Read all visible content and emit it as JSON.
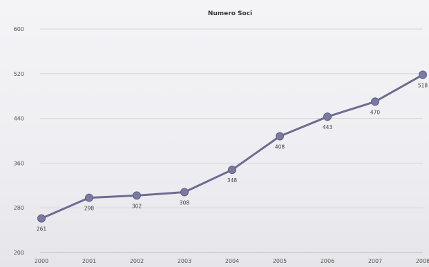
{
  "chart_data": {
    "type": "line",
    "title": "Numero Soci",
    "xlabel": "",
    "ylabel": "",
    "x": [
      "2000",
      "2001",
      "2002",
      "2003",
      "2004",
      "2005",
      "2006",
      "2007",
      "2008"
    ],
    "series": [
      {
        "values": [
          261,
          298,
          302,
          308,
          348,
          408,
          443,
          470,
          518
        ],
        "data_labels": [
          "261",
          "298",
          "302",
          "308",
          "348",
          "408",
          "443",
          "470",
          "518"
        ]
      }
    ],
    "ylim": [
      200,
      600
    ],
    "y_ticks": [
      "200",
      "280",
      "360",
      "440",
      "520",
      "600"
    ],
    "y_tick_values": [
      200,
      280,
      360,
      440,
      520,
      600
    ],
    "grid": true,
    "legend": "none",
    "colors": {
      "line": "#6c6c92",
      "marker": "#7a7aa0"
    }
  }
}
